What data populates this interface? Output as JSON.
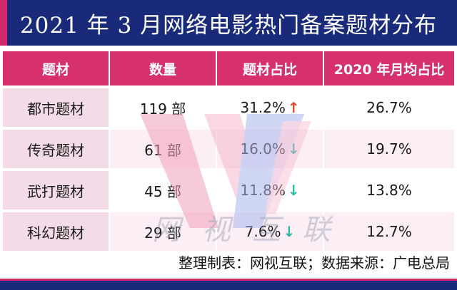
{
  "title": "2021 年 3 月网络电影热门备案题材分布",
  "colors": {
    "title_bg": "#1a2a7a",
    "header_bg": "#d6306f",
    "topic_bg": "#f3dce7",
    "arrow_up": "#e0452a",
    "arrow_down": "#2bb8a4"
  },
  "chart_data": {
    "type": "table",
    "columns": [
      "题材",
      "数量",
      "题材占比",
      "2020 年月均占比"
    ],
    "rows": [
      {
        "topic": "都市题材",
        "count": "119 部",
        "share": "31.2%",
        "trend": "up",
        "avg2020": "26.7%"
      },
      {
        "topic": "传奇题材",
        "count": "61 部",
        "share": "16.0%",
        "trend": "down",
        "avg2020": "19.7%"
      },
      {
        "topic": "武打题材",
        "count": "45 部",
        "share": "11.8%",
        "trend": "down",
        "avg2020": "13.8%"
      },
      {
        "topic": "科幻题材",
        "count": "29 部",
        "share": "7.6%",
        "trend": "down",
        "avg2020": "12.7%"
      }
    ]
  },
  "watermark": "网视互联",
  "footer": "整理制表：网视互联；数据来源：广电总局"
}
